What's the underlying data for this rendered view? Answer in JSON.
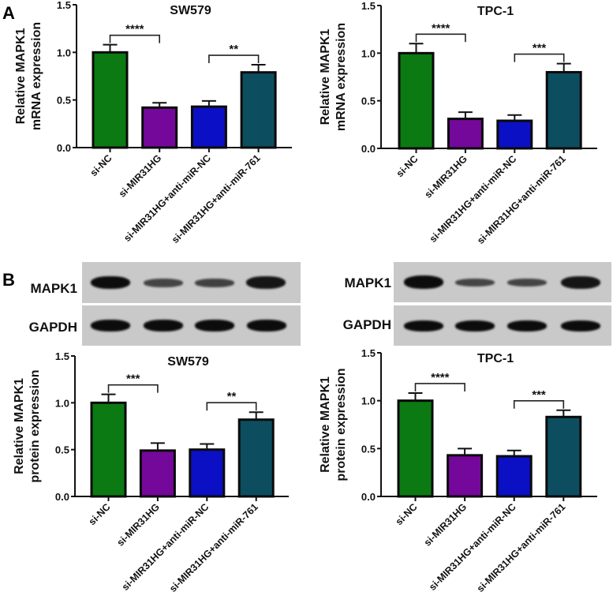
{
  "panels": {
    "A_label": "A",
    "B_label": "B"
  },
  "groups": [
    "si-NC",
    "si-MIR31HG",
    "si-MIR31HG+anti-miR-NC",
    "si-MIR31HG+anti-miR-761"
  ],
  "colors": {
    "si-NC": "#0b7a12",
    "si-MIR31HG": "#74089a",
    "si-MIR31HG+anti-miR-NC": "#0b10c4",
    "si-MIR31HG+anti-miR-761": "#0c4e60",
    "axis": "#111111",
    "blot_bg": "#c8c8c8",
    "band": "#0c0c0c"
  },
  "western_blots": [
    {
      "name": "SW579-blot",
      "rows": [
        {
          "label": "MAPK1",
          "band_intensity": [
            1.0,
            0.7,
            0.72,
            0.95
          ],
          "band_height": [
            16,
            11,
            11,
            16
          ]
        },
        {
          "label": "GAPDH",
          "band_intensity": [
            1.0,
            1.0,
            1.0,
            1.0
          ],
          "band_height": [
            15,
            15,
            15,
            15
          ]
        }
      ]
    },
    {
      "name": "TPC-1-blot",
      "rows": [
        {
          "label": "MAPK1",
          "band_intensity": [
            1.0,
            0.7,
            0.7,
            0.95
          ],
          "band_height": [
            17,
            10,
            10,
            16
          ]
        },
        {
          "label": "GAPDH",
          "band_intensity": [
            1.0,
            1.0,
            1.0,
            1.0
          ],
          "band_height": [
            14,
            14,
            14,
            14
          ]
        }
      ]
    }
  ],
  "chart_data": [
    {
      "id": "A-SW579",
      "type": "bar",
      "title": "SW579",
      "ylabel": "Relative MAPK1\nmRNA expression",
      "xlabel": "",
      "categories": [
        "si-NC",
        "si-MIR31HG",
        "si-MIR31HG+anti-miR-NC",
        "si-MIR31HG+anti-miR-761"
      ],
      "values": [
        1.0,
        0.42,
        0.43,
        0.79
      ],
      "errors": [
        0.08,
        0.05,
        0.06,
        0.08
      ],
      "ylim": [
        0,
        1.5
      ],
      "yticks": [
        "0.0",
        "0.5",
        "1.0",
        "1.5"
      ],
      "grid": false,
      "significance": [
        {
          "from": 0,
          "to": 1,
          "label": "****"
        },
        {
          "from": 2,
          "to": 3,
          "label": "**"
        }
      ]
    },
    {
      "id": "A-TPC-1",
      "type": "bar",
      "title": "TPC-1",
      "ylabel": "Relative MAPK1\nmRNA expression",
      "xlabel": "",
      "categories": [
        "si-NC",
        "si-MIR31HG",
        "si-MIR31HG+anti-miR-NC",
        "si-MIR31HG+anti-miR-761"
      ],
      "values": [
        1.0,
        0.31,
        0.29,
        0.8
      ],
      "errors": [
        0.1,
        0.07,
        0.06,
        0.09
      ],
      "ylim": [
        0,
        1.5
      ],
      "yticks": [
        "0.0",
        "0.5",
        "1.0",
        "1.5"
      ],
      "grid": false,
      "significance": [
        {
          "from": 0,
          "to": 1,
          "label": "****"
        },
        {
          "from": 2,
          "to": 3,
          "label": "***"
        }
      ]
    },
    {
      "id": "B-SW579",
      "type": "bar",
      "title": "SW579",
      "ylabel": "Relative MAPK1\nprotein expression",
      "xlabel": "",
      "categories": [
        "si-NC",
        "si-MIR31HG",
        "si-MIR31HG+anti-miR-NC",
        "si-MIR31HG+anti-miR-761"
      ],
      "values": [
        1.0,
        0.49,
        0.5,
        0.82
      ],
      "errors": [
        0.09,
        0.08,
        0.06,
        0.08
      ],
      "ylim": [
        0,
        1.5
      ],
      "yticks": [
        "0.0",
        "0.5",
        "1.0",
        "1.5"
      ],
      "grid": false,
      "significance": [
        {
          "from": 0,
          "to": 1,
          "label": "***"
        },
        {
          "from": 2,
          "to": 3,
          "label": "**"
        }
      ]
    },
    {
      "id": "B-TPC-1",
      "type": "bar",
      "title": "TPC-1",
      "ylabel": "Relative MAPK1\nprotein expression",
      "xlabel": "",
      "categories": [
        "si-NC",
        "si-MIR31HG",
        "si-MIR31HG+anti-miR-NC",
        "si-MIR31HG+anti-miR-761"
      ],
      "values": [
        1.0,
        0.43,
        0.42,
        0.83
      ],
      "errors": [
        0.08,
        0.07,
        0.06,
        0.07
      ],
      "ylim": [
        0,
        1.5
      ],
      "yticks": [
        "0.0",
        "0.5",
        "1.0",
        "1.5"
      ],
      "grid": false,
      "significance": [
        {
          "from": 0,
          "to": 1,
          "label": "****"
        },
        {
          "from": 2,
          "to": 3,
          "label": "***"
        }
      ]
    }
  ]
}
